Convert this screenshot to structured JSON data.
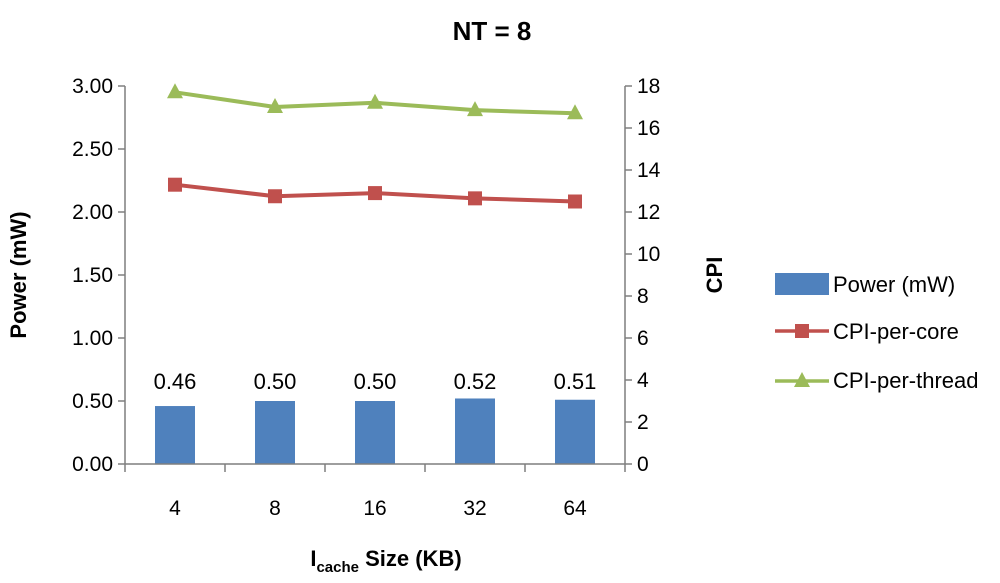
{
  "chart_data": {
    "type": "bar",
    "title": "NT = 8",
    "xlabel_main": "I",
    "xlabel_sub": "cache",
    "xlabel_rest": " Size (KB)",
    "ylabel": "Power (mW)",
    "y2label": "CPI",
    "categories": [
      "4",
      "8",
      "16",
      "32",
      "64"
    ],
    "ylim": [
      0,
      3
    ],
    "y_ticks": [
      "0.00",
      "0.50",
      "1.00",
      "1.50",
      "2.00",
      "2.50",
      "3.00"
    ],
    "y2lim": [
      0,
      18
    ],
    "y2_ticks": [
      "0",
      "2",
      "4",
      "6",
      "8",
      "10",
      "12",
      "14",
      "16",
      "18"
    ],
    "legend_position": "right",
    "series": [
      {
        "name": "Power (mW)",
        "kind": "bar",
        "axis": "left",
        "color": "#4F81BD",
        "values": [
          0.46,
          0.5,
          0.5,
          0.52,
          0.51
        ],
        "labels": [
          "0.46",
          "0.50",
          "0.50",
          "0.52",
          "0.51"
        ]
      },
      {
        "name": "CPI-per-core",
        "kind": "line",
        "axis": "right",
        "marker": "square",
        "color": "#C0504D",
        "values": [
          13.3,
          12.75,
          12.9,
          12.65,
          12.5
        ]
      },
      {
        "name": "CPI-per-thread",
        "kind": "line",
        "axis": "right",
        "marker": "triangle",
        "color": "#9BBB59",
        "values": [
          17.7,
          17.0,
          17.2,
          16.85,
          16.7
        ]
      }
    ]
  }
}
